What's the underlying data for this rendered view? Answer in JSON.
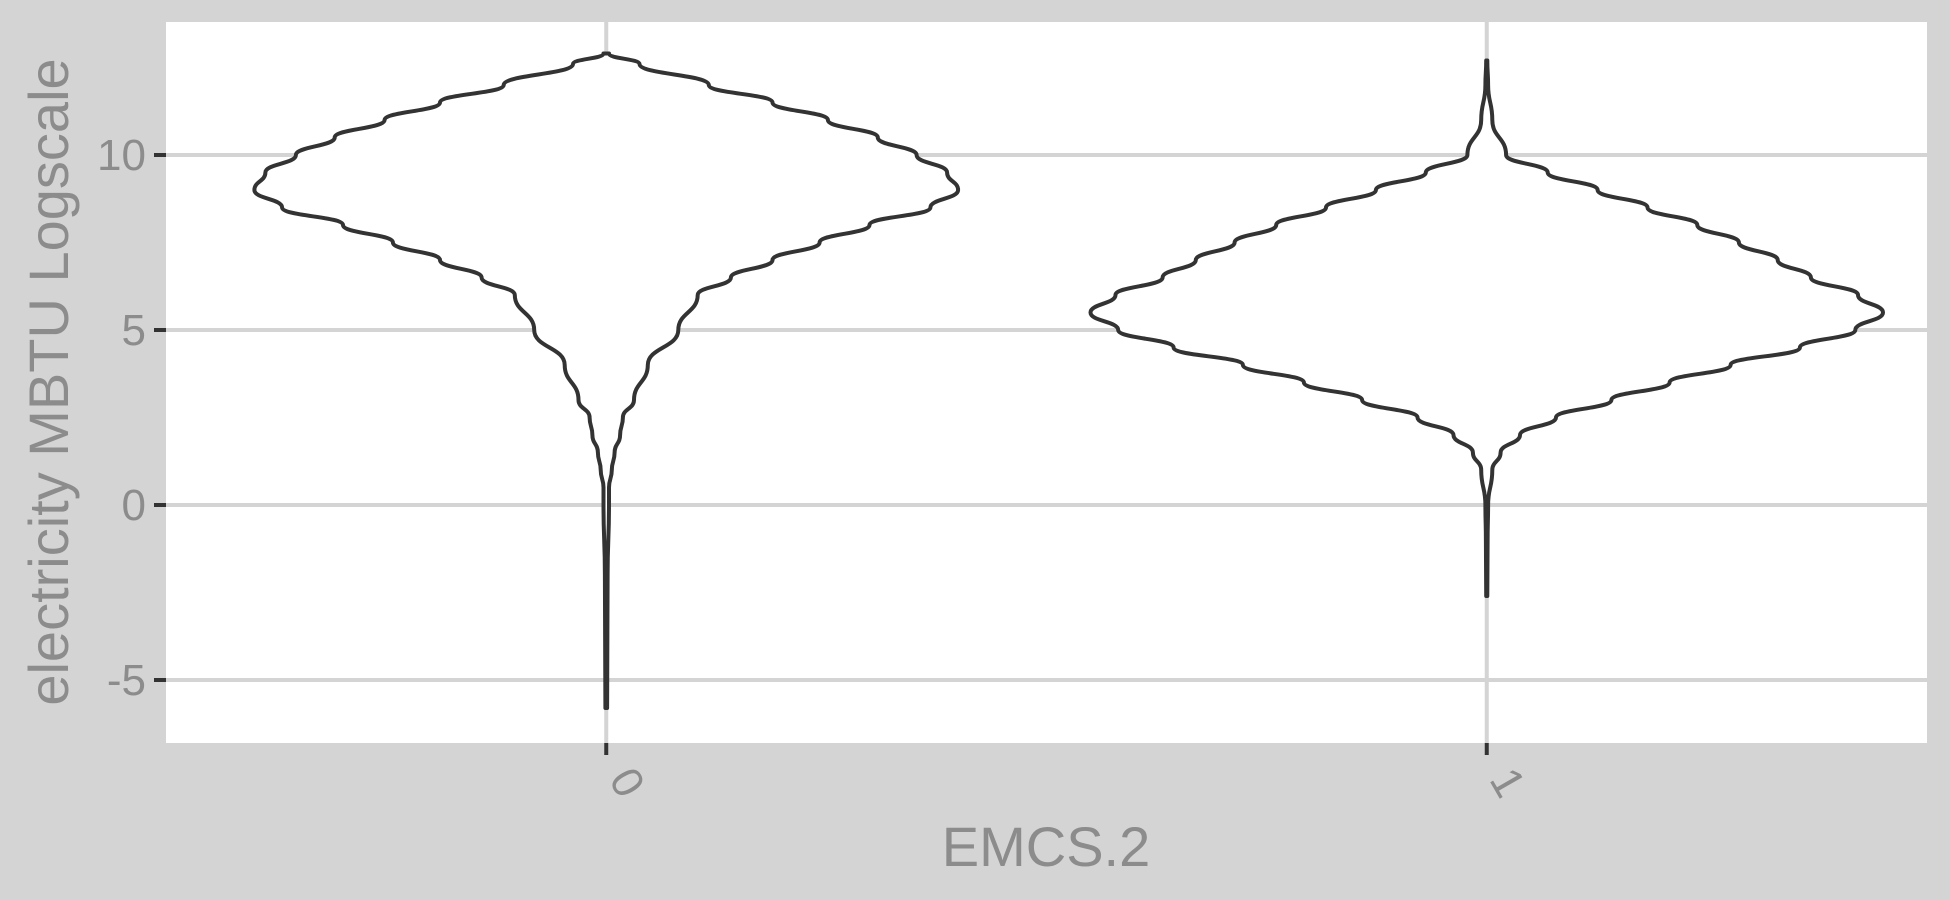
{
  "chart_data": {
    "type": "violin",
    "title": "",
    "xlabel": "EMCS.2",
    "ylabel": "electricity MBTU Logscale",
    "categories": [
      "0",
      "1"
    ],
    "y_ticks": [
      "-5",
      "0",
      "5",
      "10"
    ],
    "ylim": [
      -6.8,
      13.8
    ],
    "grid": true,
    "legend": "none",
    "colors": {
      "background": "#d4d4d4",
      "panel": "#ffffff",
      "grid": "#d4d4d4",
      "outline": "#333333",
      "text": "#8c8c8c"
    },
    "violins": [
      {
        "category": "0",
        "y_min": -5.8,
        "y_max": 12.9,
        "profile": [
          [
            12.9,
            0.01
          ],
          [
            12.6,
            0.12
          ],
          [
            12.0,
            0.37
          ],
          [
            11.5,
            0.6
          ],
          [
            11.0,
            0.8
          ],
          [
            10.5,
            0.98
          ],
          [
            10.0,
            1.12
          ],
          [
            9.5,
            1.23
          ],
          [
            9.0,
            1.27
          ],
          [
            8.5,
            1.17
          ],
          [
            8.0,
            0.95
          ],
          [
            7.5,
            0.77
          ],
          [
            7.0,
            0.6
          ],
          [
            6.5,
            0.45
          ],
          [
            6.0,
            0.33
          ],
          [
            5.0,
            0.26
          ],
          [
            4.0,
            0.15
          ],
          [
            3.0,
            0.1
          ],
          [
            2.5,
            0.06
          ],
          [
            2.0,
            0.05
          ],
          [
            1.5,
            0.03
          ],
          [
            1.0,
            0.02
          ],
          [
            0.5,
            0.01
          ],
          [
            0.0,
            0.01
          ],
          [
            -2.0,
            0.005
          ],
          [
            -5.8,
            0.003
          ]
        ]
      },
      {
        "category": "1",
        "y_min": -2.6,
        "y_max": 12.7,
        "profile": [
          [
            12.7,
            0.002
          ],
          [
            12.0,
            0.005
          ],
          [
            11.0,
            0.02
          ],
          [
            10.0,
            0.07
          ],
          [
            9.5,
            0.22
          ],
          [
            9.0,
            0.4
          ],
          [
            8.5,
            0.58
          ],
          [
            8.0,
            0.76
          ],
          [
            7.5,
            0.91
          ],
          [
            7.0,
            1.05
          ],
          [
            6.5,
            1.17
          ],
          [
            6.0,
            1.34
          ],
          [
            5.5,
            1.43
          ],
          [
            5.0,
            1.33
          ],
          [
            4.5,
            1.13
          ],
          [
            4.0,
            0.88
          ],
          [
            3.5,
            0.66
          ],
          [
            3.0,
            0.45
          ],
          [
            2.5,
            0.25
          ],
          [
            2.0,
            0.12
          ],
          [
            1.5,
            0.05
          ],
          [
            1.0,
            0.02
          ],
          [
            0.0,
            0.005
          ],
          [
            -1.0,
            0.003
          ],
          [
            -2.6,
            0.002
          ]
        ]
      }
    ]
  }
}
